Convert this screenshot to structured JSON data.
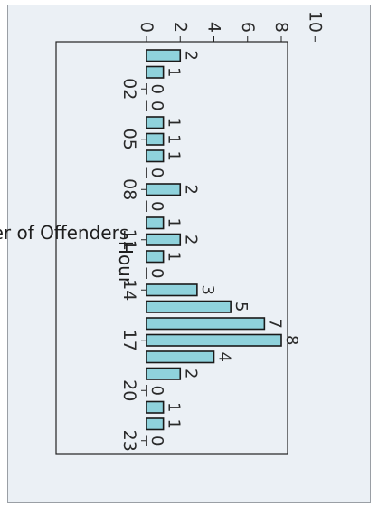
{
  "chart_data": {
    "type": "bar",
    "title": "",
    "xlabel": "Hour",
    "ylabel": "Number of Offenders",
    "x": [
      0,
      1,
      2,
      3,
      4,
      5,
      6,
      7,
      8,
      9,
      10,
      11,
      12,
      13,
      14,
      15,
      16,
      17,
      18,
      19,
      20,
      21,
      22,
      23
    ],
    "values": [
      2,
      1,
      0,
      0,
      1,
      1,
      1,
      0,
      2,
      0,
      1,
      2,
      1,
      0,
      3,
      5,
      7,
      8,
      4,
      2,
      0,
      1,
      1,
      0
    ],
    "x_ticks": [
      "02",
      "05",
      "08",
      "11",
      "14",
      "17",
      "20",
      "23"
    ],
    "y_ticks": [
      "0",
      "2",
      "4",
      "6",
      "8",
      "10"
    ],
    "ylim": [
      0,
      10
    ],
    "grid": false,
    "legend": false,
    "orientation": "rotated 90 degrees clockwise",
    "colors": {
      "bar_fill": "#8fd2dc",
      "bar_stroke": "#1a1a1a",
      "panel_bg": "#ebf0f5",
      "accent_line": "#c0394b"
    }
  }
}
